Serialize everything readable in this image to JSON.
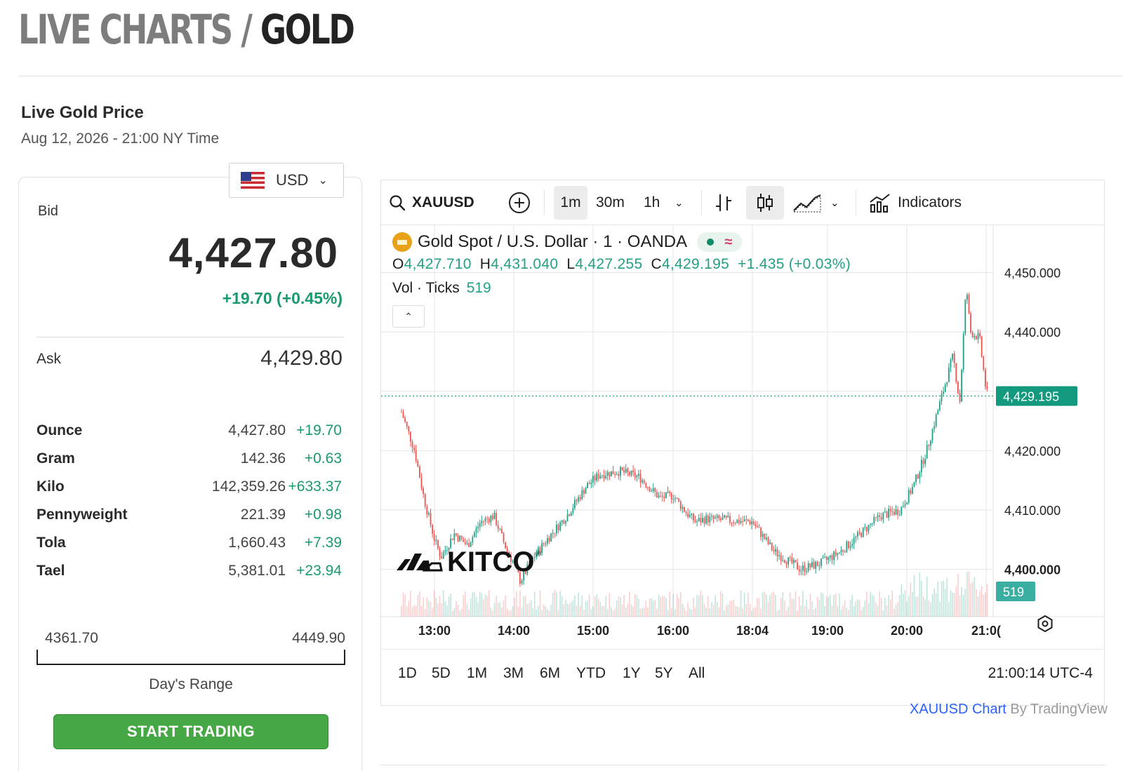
{
  "page": {
    "title_gray": "LIVE CHARTS / ",
    "title_dark": "GOLD",
    "section_title": "Live Gold Price",
    "date": "Aug 12, 2026 - 21:00 NY Time"
  },
  "quote": {
    "currency": "USD",
    "bid_label": "Bid",
    "bid": "4,427.80",
    "bid_change": "+19.70 (+0.45%)",
    "ask_label": "Ask",
    "ask": "4,429.80"
  },
  "units": [
    {
      "name": "Ounce",
      "price": "4,427.80",
      "change": "+19.70"
    },
    {
      "name": "Gram",
      "price": "142.36",
      "change": "+0.63"
    },
    {
      "name": "Kilo",
      "price": "142,359.26",
      "change": "+633.37"
    },
    {
      "name": "Pennyweight",
      "price": "221.39",
      "change": "+0.98"
    },
    {
      "name": "Tola",
      "price": "1,660.43",
      "change": "+7.39"
    },
    {
      "name": "Tael",
      "price": "5,381.01",
      "change": "+23.94"
    }
  ],
  "range": {
    "low": "4361.70",
    "high": "4449.90",
    "label": "Day's Range"
  },
  "start_trading": "START TRADING",
  "toolbar": {
    "symbol": "XAUUSD",
    "intervals": [
      "1m",
      "30m",
      "1h"
    ],
    "indicators": "Indicators"
  },
  "legend": {
    "title": "Gold Spot / U.S. Dollar · 1 · OANDA",
    "o_label": "O",
    "o": "4,427.710",
    "h_label": "H",
    "h": "4,431.040",
    "l_label": "L",
    "l": "4,427.255",
    "c_label": "C",
    "c": "4,429.195",
    "change": "+1.435 (+0.03%)",
    "vol_label": "Vol · Ticks",
    "vol": "519"
  },
  "chart_data": {
    "type": "candlestick",
    "symbol": "XAUUSD",
    "interval": "1m",
    "x_ticks": [
      "13:00",
      "14:00",
      "15:00",
      "16:00",
      "18:04",
      "19:00",
      "20:00",
      "21:0("
    ],
    "y_ticks": [
      "4,450.000",
      "4,440.000",
      "4,420.000",
      "4,410.000",
      "4,400.000"
    ],
    "ylim": [
      4392,
      4458
    ],
    "last_price": "4,429.195",
    "last_volume": "519",
    "watermark": "KITCO",
    "close_path": [
      {
        "x": "12:35",
        "y": 4426.5
      },
      {
        "x": "12:45",
        "y": 4420
      },
      {
        "x": "12:52",
        "y": 4412
      },
      {
        "x": "13:00",
        "y": 4405
      },
      {
        "x": "13:05",
        "y": 4402
      },
      {
        "x": "13:15",
        "y": 4406
      },
      {
        "x": "13:25",
        "y": 4404
      },
      {
        "x": "13:35",
        "y": 4408
      },
      {
        "x": "13:45",
        "y": 4409
      },
      {
        "x": "13:55",
        "y": 4403
      },
      {
        "x": "14:00",
        "y": 4401
      },
      {
        "x": "14:05",
        "y": 4398
      },
      {
        "x": "14:15",
        "y": 4402
      },
      {
        "x": "14:25",
        "y": 4405
      },
      {
        "x": "14:40",
        "y": 4409
      },
      {
        "x": "14:55",
        "y": 4414
      },
      {
        "x": "15:05",
        "y": 4416
      },
      {
        "x": "15:20",
        "y": 4416.5
      },
      {
        "x": "15:35",
        "y": 4415.5
      },
      {
        "x": "15:50",
        "y": 4412
      },
      {
        "x": "16:00",
        "y": 4412.5
      },
      {
        "x": "16:10",
        "y": 4411
      },
      {
        "x": "16:25",
        "y": 4409
      },
      {
        "x": "16:35",
        "y": 4408
      },
      {
        "x": "16:50",
        "y": 4408.5
      },
      {
        "x": "18:04",
        "y": 4408
      },
      {
        "x": "18:20",
        "y": 4403
      },
      {
        "x": "18:40",
        "y": 4400
      },
      {
        "x": "18:55",
        "y": 4401
      },
      {
        "x": "19:10",
        "y": 4403
      },
      {
        "x": "19:25",
        "y": 4406
      },
      {
        "x": "19:40",
        "y": 4409
      },
      {
        "x": "19:55",
        "y": 4410
      },
      {
        "x": "20:05",
        "y": 4414
      },
      {
        "x": "20:15",
        "y": 4420
      },
      {
        "x": "20:25",
        "y": 4428
      },
      {
        "x": "20:35",
        "y": 4436
      },
      {
        "x": "20:40",
        "y": 4428
      },
      {
        "x": "20:45",
        "y": 4448
      },
      {
        "x": "20:48",
        "y": 4440
      },
      {
        "x": "20:55",
        "y": 4439
      },
      {
        "x": "21:00",
        "y": 4430
      },
      {
        "x": "21:02",
        "y": 4429.2
      }
    ]
  },
  "ranges": [
    "1D",
    "5D",
    "1M",
    "3M",
    "6M",
    "YTD",
    "1Y",
    "5Y",
    "All"
  ],
  "chart_time": "21:00:14 UTC-4",
  "attribution": {
    "link": "XAUUSD Chart",
    "by": " By TradingView"
  },
  "colors": {
    "up": "#22a086",
    "down": "#ef5350",
    "accent_green": "#45a844",
    "change_green": "#1a9a6c"
  }
}
